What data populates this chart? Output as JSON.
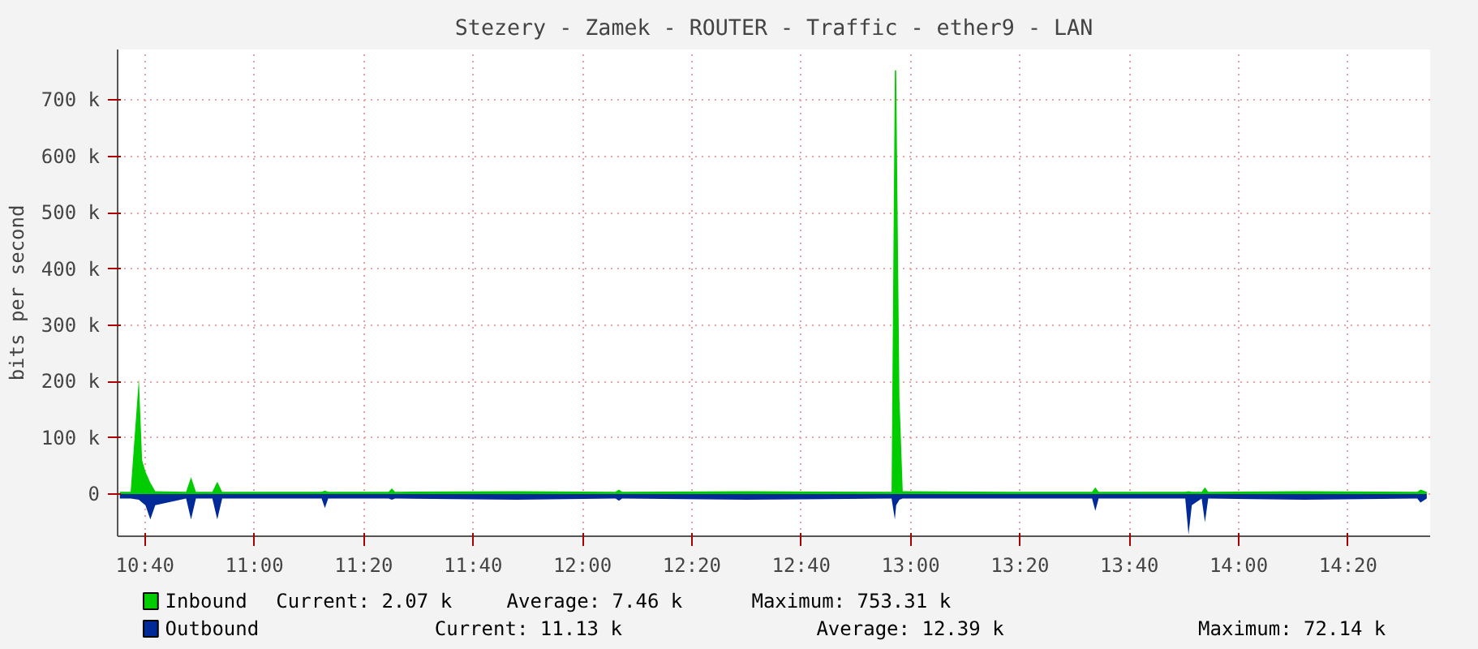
{
  "chart_data": {
    "type": "area",
    "title": "Stezery - Zamek - ROUTER - Traffic - ether9 - LAN",
    "ylabel": "bits per second",
    "x": [
      10.59,
      10.623,
      10.648,
      10.658,
      10.668,
      10.683,
      10.698,
      10.792,
      10.807,
      10.822,
      10.872,
      10.887,
      10.902,
      11.205,
      11.215,
      11.225,
      11.409,
      11.419,
      11.429,
      11.8,
      12.101,
      12.111,
      12.121,
      12.5,
      12.942,
      12.952,
      12.956,
      12.966,
      12.976,
      13.3,
      13.553,
      13.563,
      13.573,
      13.837,
      13.847,
      13.857,
      13.887,
      13.897,
      13.907,
      14.2,
      14.544,
      14.554,
      14.573
    ],
    "series": [
      {
        "name": "Inbound",
        "color": "#00cc00",
        "values": [
          4,
          4,
          205,
          60,
          40,
          20,
          5,
          4,
          30,
          4,
          4,
          22,
          4,
          4,
          6,
          4,
          4,
          10,
          4,
          5,
          4,
          8,
          4,
          5,
          4,
          753,
          753,
          170,
          5,
          4,
          4,
          12,
          4,
          4,
          5,
          4,
          4,
          12,
          4,
          5,
          4,
          8,
          4
        ]
      },
      {
        "name": "Outbound",
        "color": "#002a97",
        "values": [
          -8,
          -8,
          -10,
          -15,
          -20,
          -45,
          -20,
          -8,
          -45,
          -8,
          -8,
          -45,
          -8,
          -8,
          -25,
          -8,
          -8,
          -10,
          -8,
          -10,
          -8,
          -12,
          -8,
          -10,
          -8,
          -45,
          -20,
          -10,
          -8,
          -8,
          -8,
          -30,
          -8,
          -8,
          -72,
          -20,
          -8,
          -50,
          -8,
          -10,
          -8,
          -15,
          -8
        ]
      }
    ],
    "xlim": [
      10.5833,
      14.5833
    ],
    "ylim": [
      -75,
      790
    ],
    "xticks": [
      {
        "value": 10.6667,
        "label": "10:40"
      },
      {
        "value": 11,
        "label": "11:00"
      },
      {
        "value": 11.3333,
        "label": "11:20"
      },
      {
        "value": 11.6667,
        "label": "11:40"
      },
      {
        "value": 12,
        "label": "12:00"
      },
      {
        "value": 12.3333,
        "label": "12:20"
      },
      {
        "value": 12.6667,
        "label": "12:40"
      },
      {
        "value": 13,
        "label": "13:00"
      },
      {
        "value": 13.3333,
        "label": "13:20"
      },
      {
        "value": 13.6667,
        "label": "13:40"
      },
      {
        "value": 14,
        "label": "14:00"
      },
      {
        "value": 14.3333,
        "label": "14:20"
      }
    ],
    "yticks": [
      0,
      {
        "value": 100,
        "label": "100 k"
      },
      {
        "value": 200,
        "label": "200 k"
      },
      {
        "value": 300,
        "label": "300 k"
      },
      {
        "value": 400,
        "label": "400 k"
      },
      {
        "value": 500,
        "label": "500 k"
      },
      {
        "value": 600,
        "label": "600 k"
      },
      {
        "value": 700,
        "label": "700 k"
      }
    ],
    "grid": true,
    "legend": "bottom",
    "annotations": [
      "Current:    2.07 k",
      "Average:    7.46 k",
      "Maximum:  753.31 k",
      "Current:   11.13 k",
      "Average:   12.39 k",
      "Maximum:   72.14 k"
    ]
  }
}
